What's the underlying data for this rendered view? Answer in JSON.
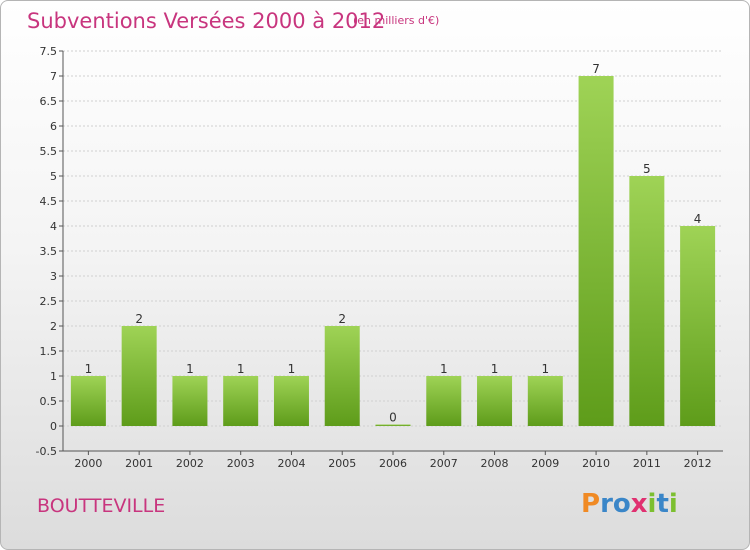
{
  "header": {
    "title": "Subventions Versées 2000 à 2012",
    "subtitle": "(en milliers d'€)"
  },
  "footer": {
    "commune": "BOUTTEVILLE",
    "logo_letters": [
      "P",
      "r",
      "o",
      "x",
      "i",
      "t",
      "i"
    ],
    "logo_colors": [
      "#f08a24",
      "#3a86c8",
      "#3a86c8",
      "#e03070",
      "#7cbf30",
      "#3a86c8",
      "#7cbf30"
    ]
  },
  "colors": {
    "title": "#c8357e",
    "bar_light": "#9fd356",
    "bar_dark": "#5e9c1a",
    "grid": "#d0d0d0",
    "axis": "#555555"
  },
  "chart_data": {
    "type": "bar",
    "title": "Subventions Versées 2000 à 2012",
    "subtitle": "(en milliers d'€)",
    "xlabel": "",
    "ylabel": "",
    "categories": [
      "2000",
      "2001",
      "2002",
      "2003",
      "2004",
      "2005",
      "2006",
      "2007",
      "2008",
      "2009",
      "2010",
      "2011",
      "2012"
    ],
    "values": [
      1,
      2,
      1,
      1,
      1,
      2,
      0,
      1,
      1,
      1,
      7,
      5,
      4
    ],
    "data_labels": [
      "1",
      "2",
      "1",
      "1",
      "1",
      "2",
      "0",
      "1",
      "1",
      "1",
      "7",
      "5",
      "4"
    ],
    "yticks": [
      "-0.5",
      "0",
      "0.5",
      "1",
      "1.5",
      "2",
      "2.5",
      "3",
      "3.5",
      "4",
      "4.5",
      "5",
      "5.5",
      "6",
      "6.5",
      "7",
      "7.5"
    ],
    "ylim": [
      -0.5,
      7.5
    ],
    "grid": true
  }
}
